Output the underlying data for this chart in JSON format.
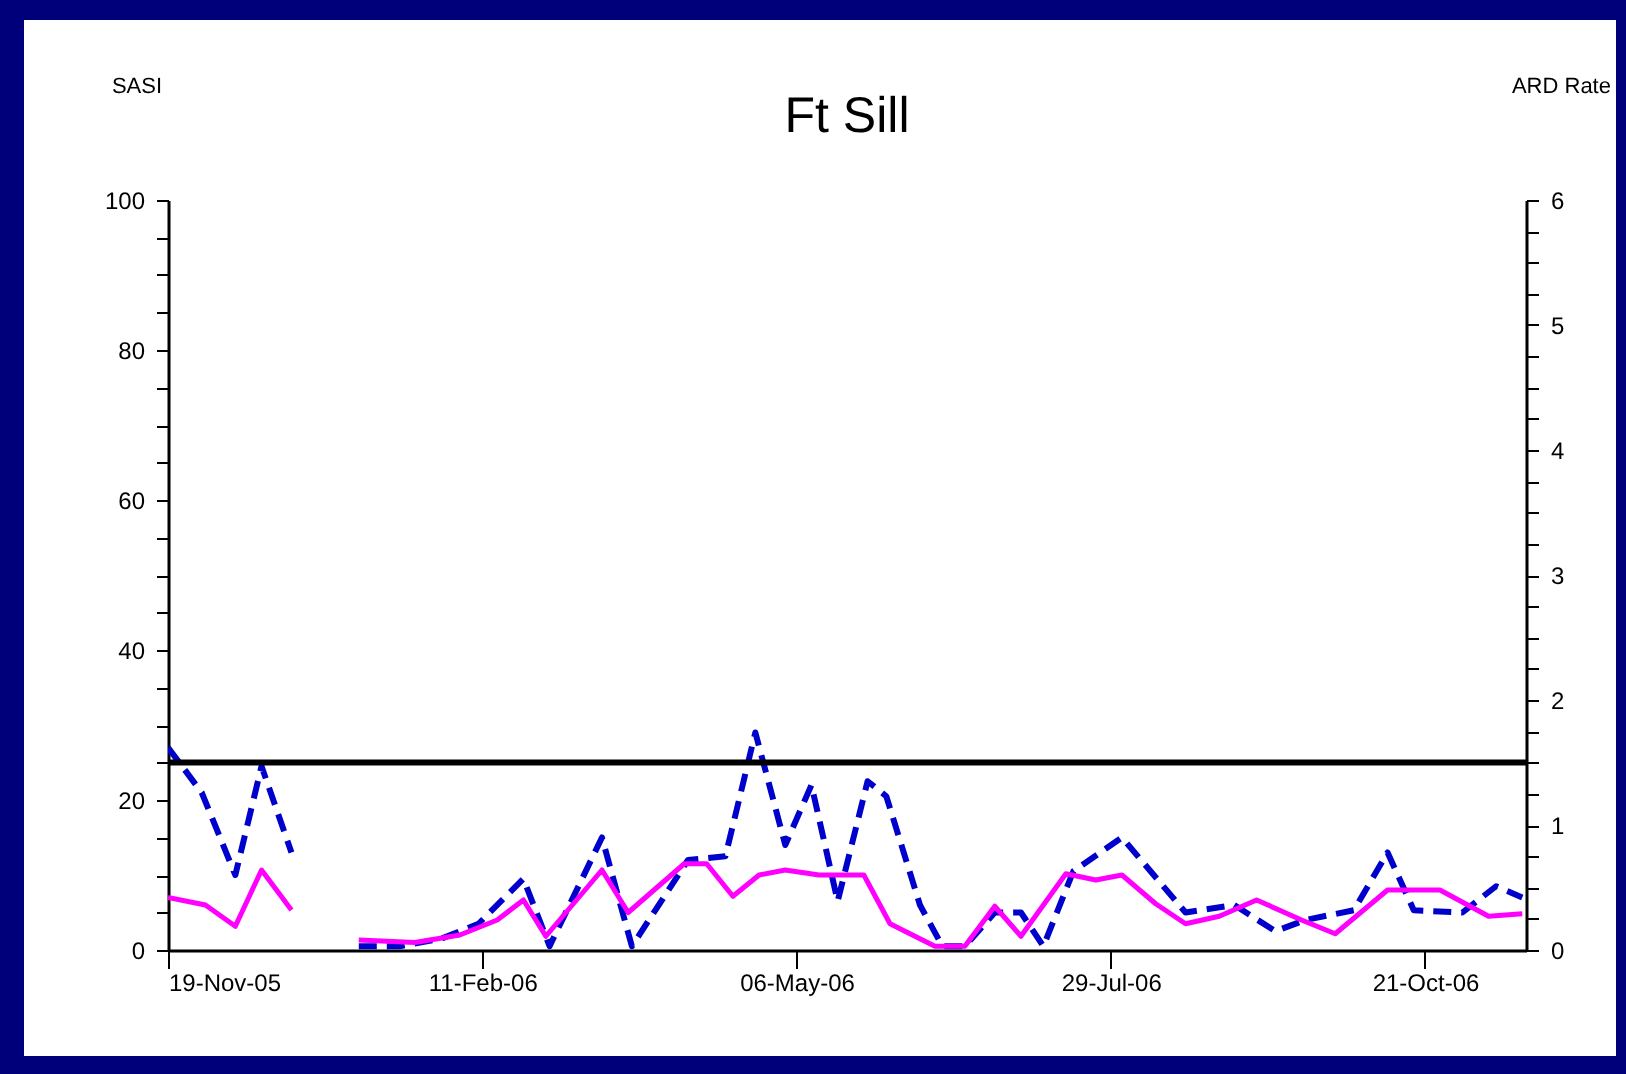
{
  "chart_data": {
    "type": "line",
    "title": "Ft Sill",
    "ylabel": "SASI",
    "y2label": "ARD Rate",
    "xlim": [
      "2005-11-19",
      "2006-11-17"
    ],
    "xticks": [
      {
        "value": "2005-11-19",
        "label": "19-Nov-05"
      },
      {
        "value": "2006-02-11",
        "label": "11-Feb-06"
      },
      {
        "value": "2006-05-06",
        "label": "06-May-06"
      },
      {
        "value": "2006-07-29",
        "label": "29-Jul-06"
      },
      {
        "value": "2006-10-21",
        "label": "21-Oct-06"
      }
    ],
    "ylim": [
      0,
      100
    ],
    "yticks": [
      0,
      {
        "value": 5,
        "label": null
      },
      {
        "value": 10,
        "label": null
      },
      {
        "value": 15,
        "label": null
      },
      20,
      {
        "value": 25,
        "label": null
      },
      {
        "value": 30,
        "label": null
      },
      {
        "value": 35,
        "label": null
      },
      40,
      {
        "value": 45,
        "label": null
      },
      {
        "value": 50,
        "label": null
      },
      {
        "value": 55,
        "label": null
      },
      60,
      {
        "value": 65,
        "label": null
      },
      {
        "value": 70,
        "label": null
      },
      {
        "value": 75,
        "label": null
      },
      80,
      {
        "value": 85,
        "label": null
      },
      {
        "value": 90,
        "label": null
      },
      {
        "value": 95,
        "label": null
      },
      100
    ],
    "y2lim": [
      0,
      6
    ],
    "y2ticks": [
      0,
      {
        "value": 0.25,
        "label": null
      },
      {
        "value": 0.5,
        "label": null
      },
      {
        "value": 0.75,
        "label": null
      },
      1,
      {
        "value": 1.25,
        "label": null
      },
      {
        "value": 1.5,
        "label": null
      },
      {
        "value": 1.75,
        "label": null
      },
      2,
      {
        "value": 2.25,
        "label": null
      },
      {
        "value": 2.5,
        "label": null
      },
      {
        "value": 2.75,
        "label": null
      },
      3,
      {
        "value": 3.25,
        "label": null
      },
      {
        "value": 3.5,
        "label": null
      },
      {
        "value": 3.75,
        "label": null
      },
      4,
      {
        "value": 4.25,
        "label": null
      },
      {
        "value": 4.5,
        "label": null
      },
      {
        "value": 4.75,
        "label": null
      },
      5,
      {
        "value": 5.25,
        "label": null
      },
      {
        "value": 5.5,
        "label": null
      },
      {
        "value": 5.75,
        "label": null
      },
      6
    ],
    "grid": false,
    "marker": "none",
    "ref_lines": [
      {
        "axis": "y",
        "value": 25,
        "color": "#000000",
        "line_style": "solid"
      }
    ],
    "series": [
      {
        "color": "#0000cc",
        "line_style": "dashed",
        "x": [
          "2005-11-19",
          "2005-11-28",
          "2005-12-07",
          "2005-12-14",
          "2005-12-22",
          "2005-12-31",
          "2006-01-09",
          "2006-01-20",
          "2006-01-31",
          "2006-02-10",
          "2006-02-22",
          "2006-03-01",
          "2006-03-15",
          "2006-03-23",
          "2006-04-07",
          "2006-04-17",
          "2006-04-25",
          "2006-05-03",
          "2006-05-10",
          "2006-05-17",
          "2006-05-25",
          "2006-05-30",
          "2006-06-08",
          "2006-06-14",
          "2006-06-20",
          "2006-06-28",
          "2006-07-05",
          "2006-07-11",
          "2006-07-19",
          "2006-08-01",
          "2006-08-18",
          "2006-08-31",
          "2006-09-11",
          "2006-09-19",
          "2006-10-02",
          "2006-10-11",
          "2006-10-18",
          "2006-10-31",
          "2006-11-09",
          "2006-11-16"
        ],
        "values": [
          27,
          21,
          10,
          24.5,
          13,
          null,
          0.5,
          0.5,
          1.5,
          3.5,
          9.5,
          0.5,
          15,
          0.5,
          12,
          12.5,
          29,
          14,
          22,
          6.5,
          22.5,
          20.5,
          6,
          0.5,
          0.5,
          5,
          5,
          0.5,
          10.5,
          15,
          5,
          6,
          2.5,
          4,
          5.3,
          13,
          5.3,
          5,
          8.5,
          7
        ]
      },
      {
        "color": "#ff00ff",
        "line_style": "solid",
        "axis": "y2",
        "x": [
          "2005-11-19",
          "2005-11-29",
          "2005-12-07",
          "2005-12-14",
          "2005-12-22",
          "2005-12-31",
          "2006-01-09",
          "2006-01-24",
          "2006-02-05",
          "2006-02-15",
          "2006-02-22",
          "2006-02-28",
          "2006-03-15",
          "2006-03-22",
          "2006-04-06",
          "2006-04-12",
          "2006-04-19",
          "2006-04-26",
          "2006-05-03",
          "2006-05-12",
          "2006-05-24",
          "2006-05-31",
          "2006-06-12",
          "2006-06-20",
          "2006-06-28",
          "2006-07-05",
          "2006-07-17",
          "2006-07-25",
          "2006-08-01",
          "2006-08-10",
          "2006-08-18",
          "2006-08-27",
          "2006-09-06",
          "2006-09-18",
          "2006-09-27",
          "2006-10-11",
          "2006-10-25",
          "2006-11-07",
          "2006-11-16"
        ],
        "values": [
          0.42,
          0.36,
          0.19,
          0.64,
          0.32,
          null,
          0.08,
          0.06,
          0.12,
          0.24,
          0.4,
          0.11,
          0.64,
          0.3,
          0.69,
          0.69,
          0.43,
          0.6,
          0.64,
          0.6,
          0.6,
          0.21,
          0.03,
          0.03,
          0.35,
          0.11,
          0.61,
          0.56,
          0.6,
          0.37,
          0.21,
          0.27,
          0.4,
          0.24,
          0.13,
          0.48,
          0.48,
          0.27,
          0.29
        ]
      }
    ]
  }
}
